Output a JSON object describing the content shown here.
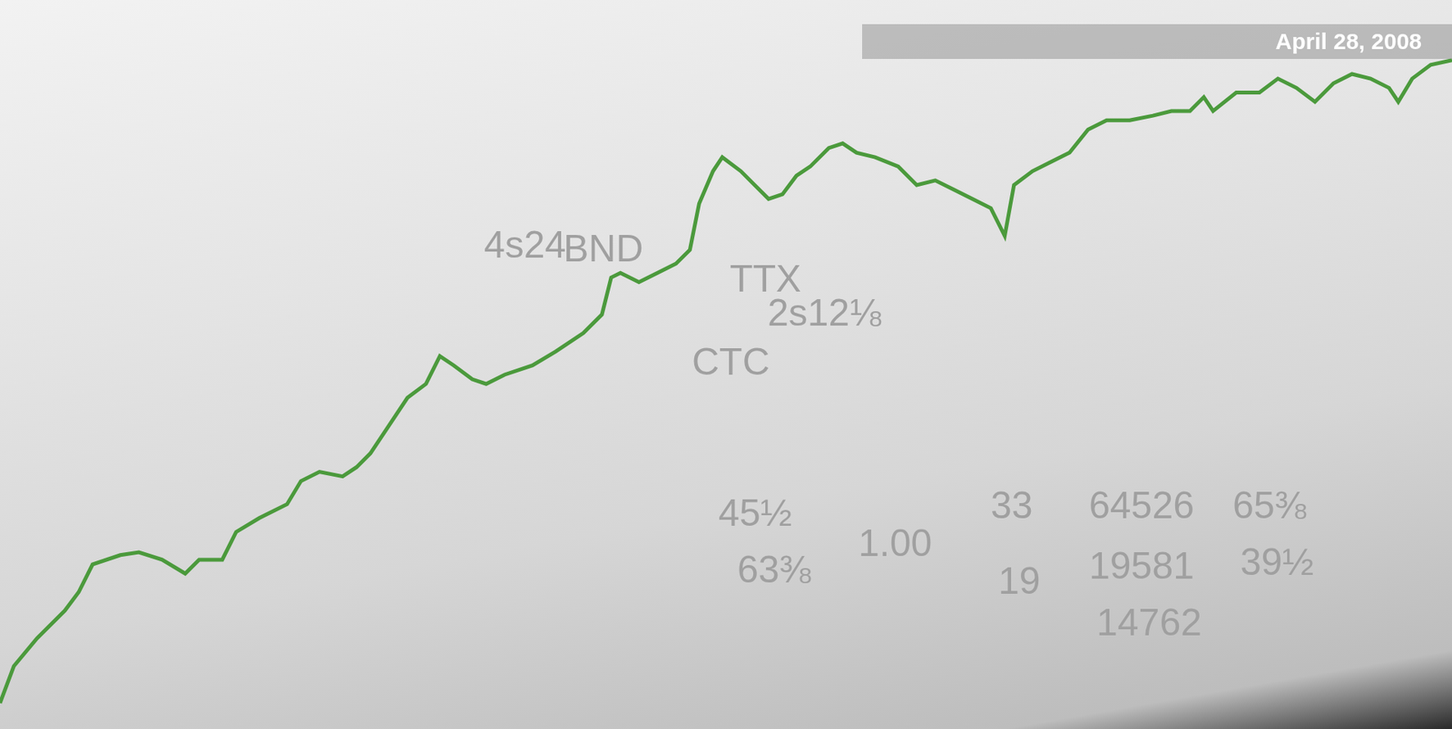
{
  "chart_data": {
    "type": "line",
    "title": "April 28, 2008",
    "annotations": [
      "4s24",
      "BND",
      "TTX",
      "2s12⅛",
      "CTC",
      "45½",
      "63⅜",
      "1.00",
      "33",
      "19",
      "64526",
      "65⅜",
      "19581",
      "39½",
      "14762"
    ],
    "x": [
      0,
      15,
      40,
      70,
      85,
      100,
      130,
      150,
      175,
      200,
      215,
      240,
      255,
      280,
      310,
      325,
      345,
      370,
      385,
      400,
      420,
      440,
      460,
      475,
      490,
      510,
      525,
      545,
      575,
      600,
      630,
      650,
      660,
      670,
      690,
      710,
      730,
      745,
      755,
      770,
      780,
      800,
      815,
      830,
      845,
      860,
      875,
      895,
      910,
      925,
      945,
      970,
      990,
      1010,
      1030,
      1050,
      1070,
      1085,
      1095,
      1115,
      1135,
      1155,
      1175,
      1195,
      1220,
      1245,
      1265,
      1285,
      1300,
      1310,
      1335,
      1360,
      1380,
      1400,
      1420,
      1440,
      1460,
      1480,
      1500,
      1510,
      1525,
      1545,
      1568
    ],
    "values": [
      28,
      68,
      98,
      128,
      148,
      178,
      188,
      191,
      183,
      168,
      183,
      183,
      213,
      228,
      243,
      268,
      278,
      273,
      283,
      298,
      328,
      358,
      373,
      403,
      393,
      378,
      373,
      383,
      393,
      408,
      428,
      448,
      488,
      493,
      483,
      493,
      503,
      518,
      568,
      603,
      618,
      603,
      588,
      573,
      578,
      598,
      608,
      628,
      633,
      623,
      618,
      608,
      588,
      593,
      583,
      573,
      563,
      533,
      588,
      603,
      613,
      623,
      648,
      658,
      658,
      663,
      668,
      668,
      683,
      668,
      688,
      688,
      703,
      693,
      678,
      698,
      708,
      703,
      693,
      678,
      703,
      718,
      723
    ],
    "color": "#4b9a3c",
    "xlim": [
      0,
      1568
    ],
    "ylim": [
      0,
      788
    ],
    "tick_labels": false,
    "grid": false
  }
}
